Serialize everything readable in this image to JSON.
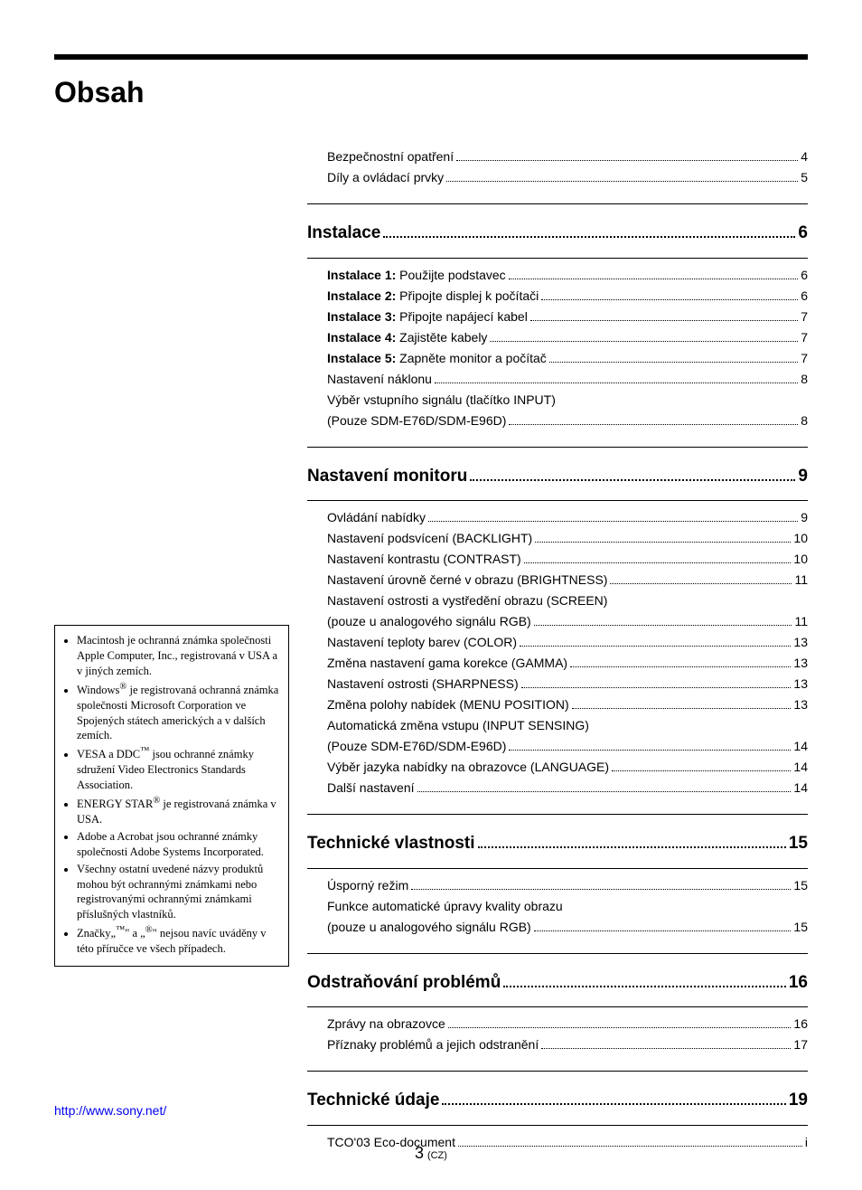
{
  "heading": "Obsah",
  "toc": {
    "intro": [
      {
        "label": "Bezpečnostní opatření",
        "page": "4"
      },
      {
        "label": "Díly a ovládací prvky",
        "page": "5"
      }
    ],
    "sections": [
      {
        "title": "Instalace",
        "page": "6",
        "items": [
          {
            "prefix": "Instalace 1:",
            "label": " Použijte podstavec",
            "page": "6",
            "bold_prefix": true
          },
          {
            "prefix": "Instalace 2:",
            "label": " Připojte displej k počítači",
            "page": "6",
            "bold_prefix": true
          },
          {
            "prefix": "Instalace 3:",
            "label": " Připojte napájecí kabel",
            "page": "7",
            "bold_prefix": true
          },
          {
            "prefix": "Instalace 4:",
            "label": " Zajistěte kabely",
            "page": "7",
            "bold_prefix": true
          },
          {
            "prefix": "Instalace 5:",
            "label": " Zapněte monitor a počítač",
            "page": "7",
            "bold_prefix": true
          },
          {
            "label": "Nastavení náklonu",
            "page": "8"
          },
          {
            "label": "Výběr vstupního signálu (tlačítko INPUT)",
            "no_page": true
          },
          {
            "label": "(Pouze SDM-E76D/SDM-E96D)",
            "page": "8"
          }
        ]
      },
      {
        "title": "Nastavení monitoru",
        "page": "9",
        "items": [
          {
            "label": "Ovládání nabídky",
            "page": "9"
          },
          {
            "label": "Nastavení podsvícení (BACKLIGHT)",
            "page": "10"
          },
          {
            "label": "Nastavení kontrastu (CONTRAST)",
            "page": "10"
          },
          {
            "label": "Nastavení úrovně černé v obrazu (BRIGHTNESS)",
            "page": "11"
          },
          {
            "label": "Nastavení ostrosti a vystředění obrazu (SCREEN)",
            "no_page": true
          },
          {
            "label": "(pouze u analogového signálu RGB)",
            "page": "11"
          },
          {
            "label": "Nastavení teploty barev (COLOR)",
            "page": "13"
          },
          {
            "label": "Změna nastavení gama korekce (GAMMA)",
            "page": "13"
          },
          {
            "label": "Nastavení ostrosti (SHARPNESS)",
            "page": "13"
          },
          {
            "label": "Změna polohy nabídek (MENU POSITION)",
            "page": "13"
          },
          {
            "label": "Automatická změna vstupu (INPUT SENSING)",
            "no_page": true
          },
          {
            "label": "(Pouze SDM-E76D/SDM-E96D)",
            "page": "14"
          },
          {
            "label": "Výběr jazyka nabídky na obrazovce (LANGUAGE)",
            "page": "14"
          },
          {
            "label": "Další nastavení",
            "page": "14"
          }
        ]
      },
      {
        "title": "Technické vlastnosti",
        "page": "15",
        "items": [
          {
            "label": "Úsporný režim",
            "page": "15"
          },
          {
            "label": "Funkce automatické úpravy kvality obrazu",
            "no_page": true
          },
          {
            "label": "(pouze u analogového signálu RGB)",
            "page": "15"
          }
        ]
      },
      {
        "title": "Odstraňování problémů",
        "page": "16",
        "items": [
          {
            "label": "Zprávy na obrazovce",
            "page": "16"
          },
          {
            "label": "Příznaky problémů a jejich odstranění",
            "page": "17"
          }
        ]
      },
      {
        "title": "Technické údaje",
        "page": "19",
        "items": [
          {
            "label": "TCO'03 Eco-document",
            "page": "i"
          }
        ]
      }
    ]
  },
  "trademarks": [
    "Macintosh je ochranná známka společnosti Apple Computer, Inc., registrovaná v USA a v jiných zemích.",
    "Windows<sup>®</sup> je registrovaná ochranná známka společnosti Microsoft Corporation ve Spojených státech amerických a v dalších zemích.",
    "VESA a DDC<sup>™</sup> jsou ochranné známky sdružení Video Electronics Standards Association.",
    "ENERGY STAR<sup>®</sup> je registrovaná známka v USA.",
    "Adobe a Acrobat jsou ochranné známky společnosti Adobe Systems Incorporated.",
    "Všechny ostatní uvedené názvy produktů mohou být ochrannými známkami nebo registrovanými ochrannými známkami příslušných vlastníků.",
    "Značky„<sup>™</sup>\" a „<sup>®</sup>\" nejsou navíc uváděny v této příručce ve všech případech."
  ],
  "footer": {
    "url": "http://www.sony.net/",
    "page_number": "3",
    "page_suffix": "(CZ)"
  }
}
